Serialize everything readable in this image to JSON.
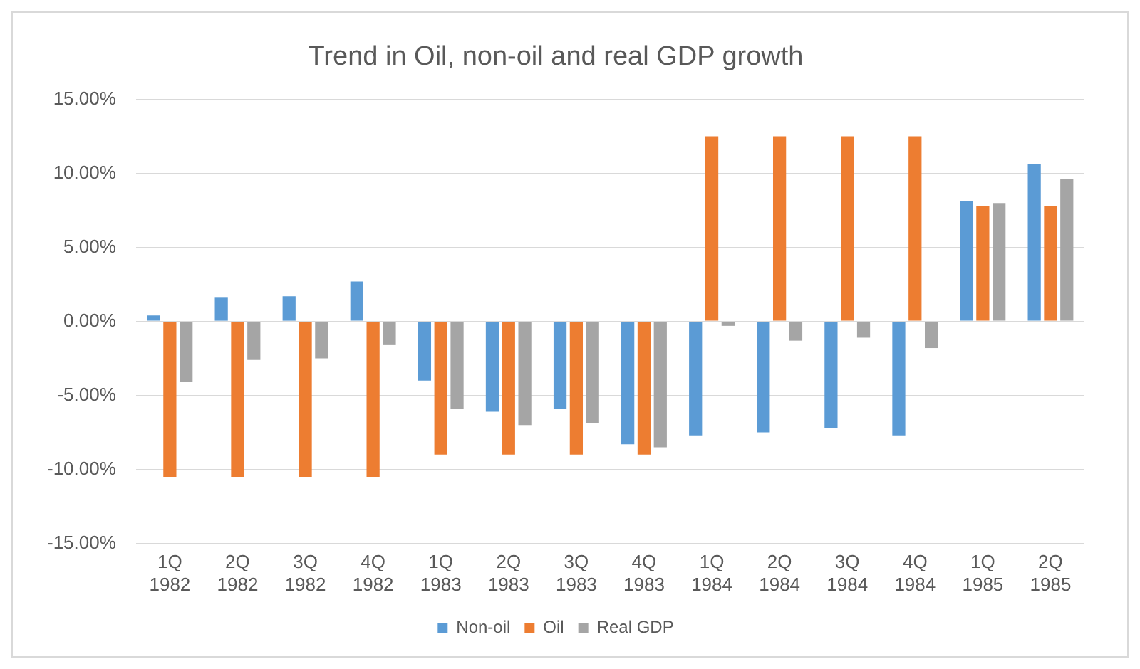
{
  "chart_data": {
    "type": "bar",
    "title": "Trend in Oil, non-oil and real GDP growth",
    "categories": [
      "1Q 1982",
      "2Q 1982",
      "3Q 1982",
      "4Q 1982",
      "1Q 1983",
      "2Q 1983",
      "3Q 1983",
      "4Q 1983",
      "1Q 1984",
      "2Q 1984",
      "3Q 1984",
      "4Q 1984",
      "1Q 1985",
      "2Q 1985"
    ],
    "series": [
      {
        "name": "Non-oil",
        "color": "#5b9bd5",
        "values": [
          0.4,
          1.6,
          1.7,
          2.7,
          -4.0,
          -6.1,
          -5.9,
          -8.3,
          -7.7,
          -7.5,
          -7.2,
          -7.7,
          8.1,
          10.6
        ]
      },
      {
        "name": "Oil",
        "color": "#ed7d31",
        "values": [
          -10.5,
          -10.5,
          -10.5,
          -10.5,
          -9.0,
          -9.0,
          -9.0,
          -9.0,
          12.5,
          12.5,
          12.5,
          12.5,
          7.8,
          7.8
        ]
      },
      {
        "name": "Real GDP",
        "color": "#a5a5a5",
        "values": [
          -4.1,
          -2.6,
          -2.5,
          -1.6,
          -5.9,
          -7.0,
          -6.9,
          -8.5,
          -0.3,
          -1.3,
          -1.1,
          -1.8,
          8.0,
          9.6
        ]
      }
    ],
    "ylim": [
      -15,
      15
    ],
    "yticks": [
      {
        "value": -15,
        "label": "-15.00%"
      },
      {
        "value": -10,
        "label": "-10.00%"
      },
      {
        "value": -5,
        "label": "-5.00%"
      },
      {
        "value": 0,
        "label": "0.00%"
      },
      {
        "value": 5,
        "label": "5.00%"
      },
      {
        "value": 10,
        "label": "10.00%"
      },
      {
        "value": 15,
        "label": "15.00%"
      }
    ],
    "grid": "y",
    "legend": "bottom"
  }
}
